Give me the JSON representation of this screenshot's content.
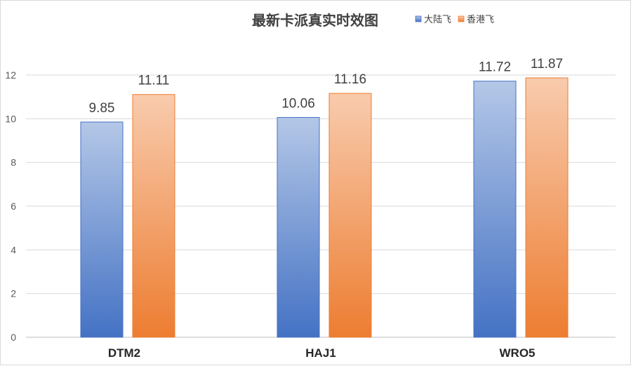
{
  "chart_data": {
    "type": "bar",
    "title": "最新卡派真实时效图",
    "categories": [
      "DTM2",
      "HAJ1",
      "WRO5"
    ],
    "series": [
      {
        "name": "大陆飞",
        "values": [
          9.85,
          10.06,
          11.72
        ],
        "color_top": "#b4c7e7",
        "color_bottom": "#4472c4",
        "border": "#4472c4"
      },
      {
        "name": "香港飞",
        "values": [
          11.11,
          11.16,
          11.87
        ],
        "color_top": "#f8cbad",
        "color_bottom": "#ed7d31",
        "border": "#ed7d31"
      }
    ],
    "value_labels": [
      [
        "9.85",
        "10.06",
        "11.72"
      ],
      [
        "11.11",
        "11.16",
        "11.87"
      ]
    ],
    "y_ticks": [
      "0",
      "2",
      "4",
      "6",
      "8",
      "10",
      "12"
    ],
    "ylim": [
      0,
      12
    ],
    "xlabel": "",
    "ylabel": "",
    "grid": true,
    "legend_position": "top-right"
  }
}
